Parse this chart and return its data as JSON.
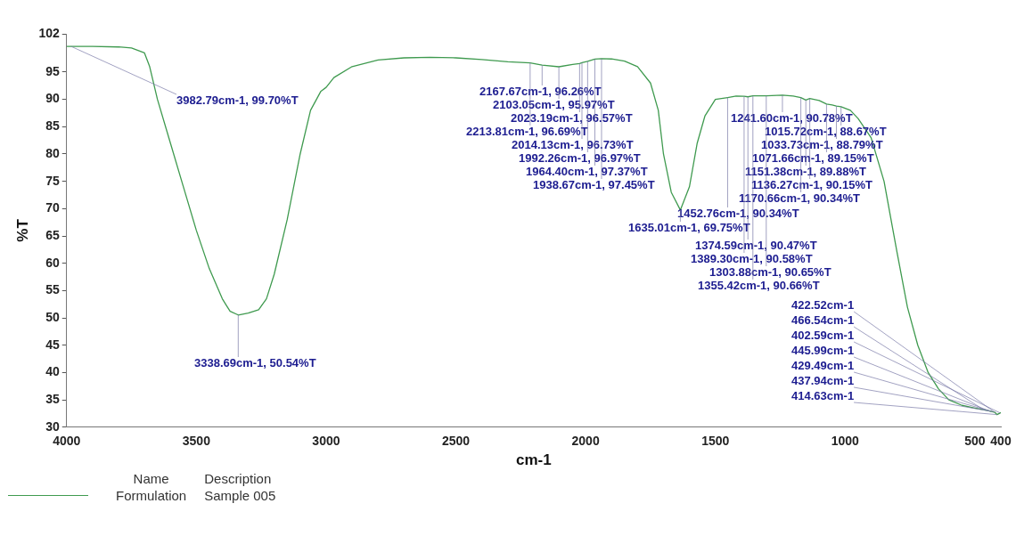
{
  "chart_data": {
    "type": "line",
    "xlabel": "cm-1",
    "ylabel": "%T",
    "xlim": [
      4000,
      400
    ],
    "ylim": [
      30,
      102
    ],
    "xticks": [
      4000,
      3500,
      3000,
      2500,
      2000,
      1500,
      1000,
      500,
      400
    ],
    "yticks": [
      30,
      35,
      40,
      45,
      50,
      55,
      60,
      65,
      70,
      75,
      80,
      85,
      90,
      95,
      102
    ],
    "grid": false,
    "marker": "none",
    "legend": "bottom left",
    "legend_title": "Name",
    "series": [
      {
        "name": "Formulation",
        "color": "#3f9a4f",
        "x": [
          4000,
          3900,
          3800,
          3750,
          3700,
          3680,
          3650,
          3600,
          3550,
          3500,
          3450,
          3400,
          3370,
          3338.69,
          3300,
          3260,
          3230,
          3200,
          3150,
          3100,
          3060,
          3020,
          3000,
          2970,
          2900,
          2800,
          2700,
          2600,
          2500,
          2400,
          2300,
          2213.81,
          2167.67,
          2103.05,
          2050,
          2023.19,
          2014.13,
          1992.26,
          1964.4,
          1938.67,
          1900,
          1850,
          1800,
          1750,
          1720,
          1700,
          1670,
          1635.01,
          1600,
          1570,
          1540,
          1500,
          1452.76,
          1420,
          1389.3,
          1374.59,
          1355.42,
          1303.88,
          1241.6,
          1200,
          1170.66,
          1151.38,
          1136.27,
          1100,
          1071.66,
          1050,
          1033.73,
          1015.72,
          980,
          950,
          900,
          850,
          800,
          760,
          720,
          680,
          640,
          600,
          550,
          500,
          466.54,
          445.99,
          437.94,
          429.49,
          422.52,
          414.63,
          402.59,
          400
        ],
        "values": [
          99.7,
          99.7,
          99.6,
          99.4,
          98.5,
          96,
          90,
          82,
          74,
          66,
          59,
          53.5,
          51.2,
          50.54,
          50.9,
          51.5,
          53.5,
          58,
          68,
          80,
          88,
          91.5,
          92.2,
          94,
          96,
          97.2,
          97.6,
          97.7,
          97.6,
          97.3,
          96.9,
          96.69,
          96.26,
          95.97,
          96.4,
          96.57,
          96.73,
          96.97,
          97.37,
          97.45,
          97.4,
          97,
          96,
          93,
          88,
          80,
          73,
          69.75,
          74,
          82,
          87,
          90,
          90.34,
          90.6,
          90.58,
          90.47,
          90.66,
          90.65,
          90.78,
          90.6,
          90.34,
          89.88,
          90.15,
          89.8,
          89.15,
          89,
          88.79,
          88.67,
          88,
          86.5,
          83,
          75,
          62,
          52,
          45,
          40,
          37,
          35,
          34,
          33.5,
          33.2,
          33,
          32.9,
          32.8,
          32.7,
          32.3,
          32.6,
          32.7
        ]
      }
    ],
    "annotations": [
      "Description",
      "Sample 005",
      {
        "text": "3982.79cm-1, 99.70%T",
        "x": 3982.79,
        "y": 99.7
      },
      {
        "text": "3338.69cm-1, 50.54%T",
        "x": 3338.69,
        "y": 50.54
      },
      {
        "text": "2167.67cm-1, 96.26%T",
        "x": 2167.67,
        "y": 96.26
      },
      {
        "text": "2103.05cm-1, 95.97%T",
        "x": 2103.05,
        "y": 95.97
      },
      {
        "text": "2023.19cm-1, 96.57%T",
        "x": 2023.19,
        "y": 96.57
      },
      {
        "text": "2213.81cm-1, 96.69%T",
        "x": 2213.81,
        "y": 96.69
      },
      {
        "text": "2014.13cm-1, 96.73%T",
        "x": 2014.13,
        "y": 96.73
      },
      {
        "text": "1992.26cm-1, 96.97%T",
        "x": 1992.26,
        "y": 96.97
      },
      {
        "text": "1964.40cm-1, 97.37%T",
        "x": 1964.4,
        "y": 97.37
      },
      {
        "text": "1938.67cm-1, 97.45%T",
        "x": 1938.67,
        "y": 97.45
      },
      {
        "text": "1241.60cm-1, 90.78%T",
        "x": 1241.6,
        "y": 90.78
      },
      {
        "text": "1015.72cm-1, 88.67%T",
        "x": 1015.72,
        "y": 88.67
      },
      {
        "text": "1033.73cm-1, 88.79%T",
        "x": 1033.73,
        "y": 88.79
      },
      {
        "text": "1071.66cm-1, 89.15%T",
        "x": 1071.66,
        "y": 89.15
      },
      {
        "text": "1151.38cm-1, 89.88%T",
        "x": 1151.38,
        "y": 89.88
      },
      {
        "text": "1136.27cm-1, 90.15%T",
        "x": 1136.27,
        "y": 90.15
      },
      {
        "text": "1170.66cm-1, 90.34%T",
        "x": 1170.66,
        "y": 90.34
      },
      {
        "text": "1452.76cm-1, 90.34%T",
        "x": 1452.76,
        "y": 90.34
      },
      {
        "text": "1635.01cm-1, 69.75%T",
        "x": 1635.01,
        "y": 69.75
      },
      {
        "text": "1374.59cm-1, 90.47%T",
        "x": 1374.59,
        "y": 90.47
      },
      {
        "text": "1389.30cm-1, 90.58%T",
        "x": 1389.3,
        "y": 90.58
      },
      {
        "text": "1303.88cm-1, 90.65%T",
        "x": 1303.88,
        "y": 90.65
      },
      {
        "text": "1355.42cm-1, 90.66%T",
        "x": 1355.42,
        "y": 90.66
      },
      {
        "text": "422.52cm-1",
        "x": 422.52,
        "y": 32.7
      },
      {
        "text": "466.54cm-1",
        "x": 466.54,
        "y": 33.2
      },
      {
        "text": "402.59cm-1",
        "x": 402.59,
        "y": 32.6
      },
      {
        "text": "445.99cm-1",
        "x": 445.99,
        "y": 33
      },
      {
        "text": "429.49cm-1",
        "x": 429.49,
        "y": 32.8
      },
      {
        "text": "437.94cm-1",
        "x": 437.94,
        "y": 32.9
      },
      {
        "text": "414.63cm-1",
        "x": 414.63,
        "y": 32.3
      }
    ]
  }
}
